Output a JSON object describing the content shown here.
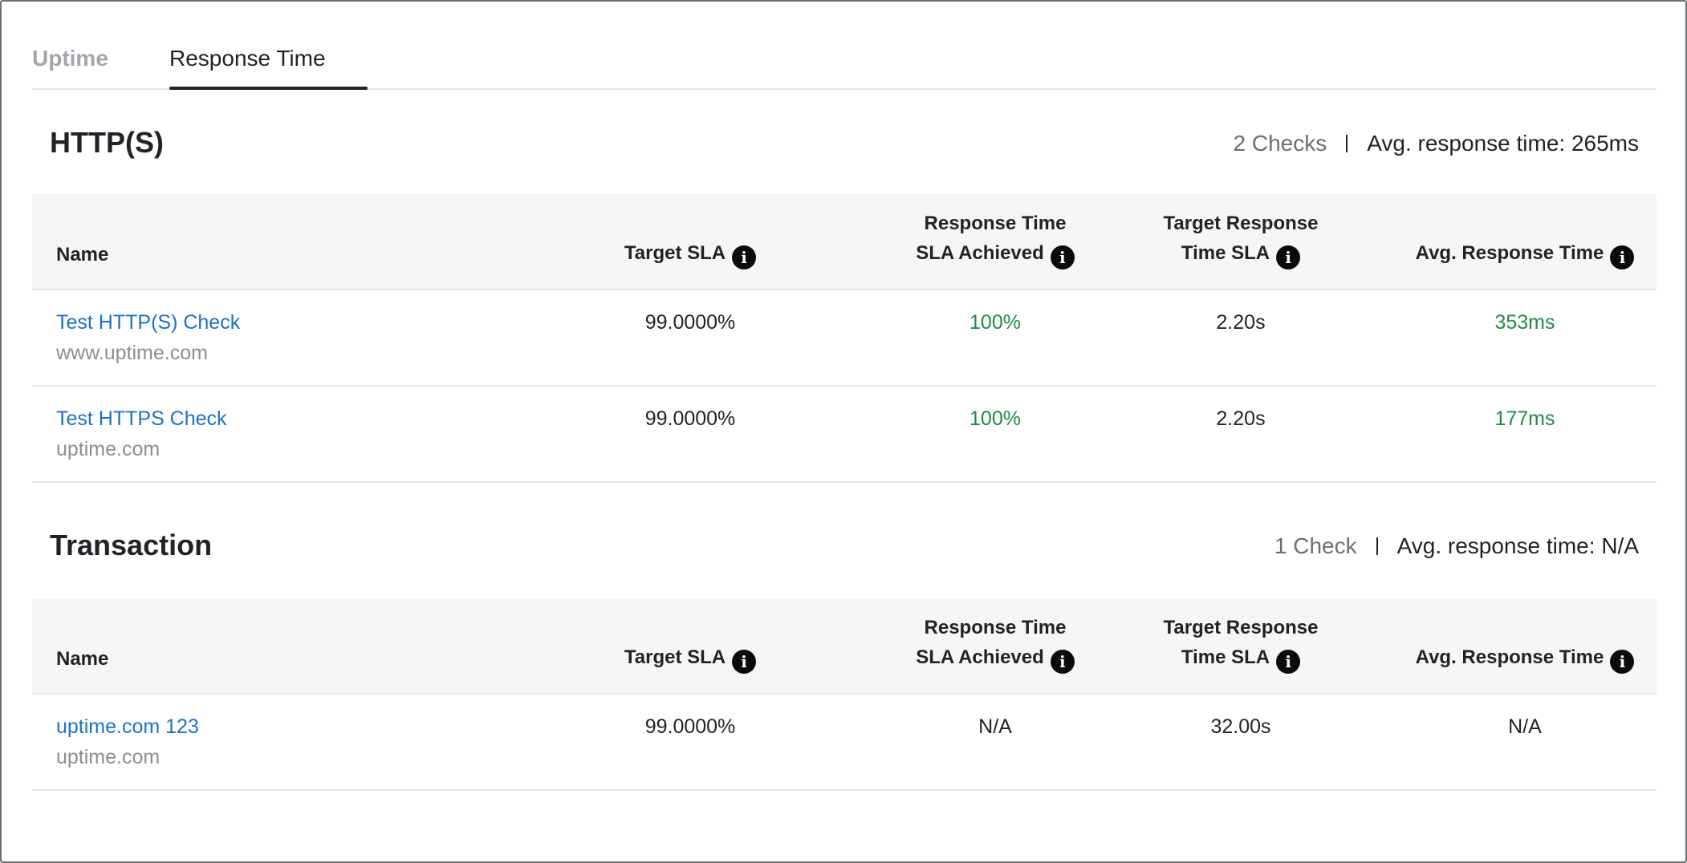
{
  "tabs": [
    {
      "label": "Uptime",
      "active": false
    },
    {
      "label": "Response Time",
      "active": true
    }
  ],
  "colors": {
    "link": "#1a73c6",
    "success": "#1e8a4c",
    "muted": "#8a8e94",
    "header_bg": "#f6f6f6"
  },
  "columns": {
    "name": "Name",
    "target_sla": "Target SLA",
    "rt_achieved_line1": "Response Time",
    "rt_achieved_line2": "SLA Achieved",
    "target_rt_line1": "Target Response",
    "target_rt_line2": "Time SLA",
    "avg_rt": "Avg. Response Time"
  },
  "sections": [
    {
      "title": "HTTP(S)",
      "count": "2 Checks",
      "avg": "Avg. response time: 265ms",
      "rows": [
        {
          "name": "Test HTTP(S) Check",
          "host": "www.uptime.com",
          "target_sla": "99.0000%",
          "achieved": "100%",
          "target_rt": "2.20s",
          "avg": "353ms"
        },
        {
          "name": "Test HTTPS Check",
          "host": "uptime.com",
          "target_sla": "99.0000%",
          "achieved": "100%",
          "target_rt": "2.20s",
          "avg": "177ms"
        }
      ]
    },
    {
      "title": "Transaction",
      "count": "1 Check",
      "avg": "Avg. response time: N/A",
      "rows": [
        {
          "name": "uptime.com 123",
          "host": "uptime.com",
          "target_sla": "99.0000%",
          "achieved": "N/A",
          "target_rt": "32.00s",
          "avg": "N/A"
        }
      ]
    }
  ],
  "icons": {
    "info": "info-icon"
  }
}
